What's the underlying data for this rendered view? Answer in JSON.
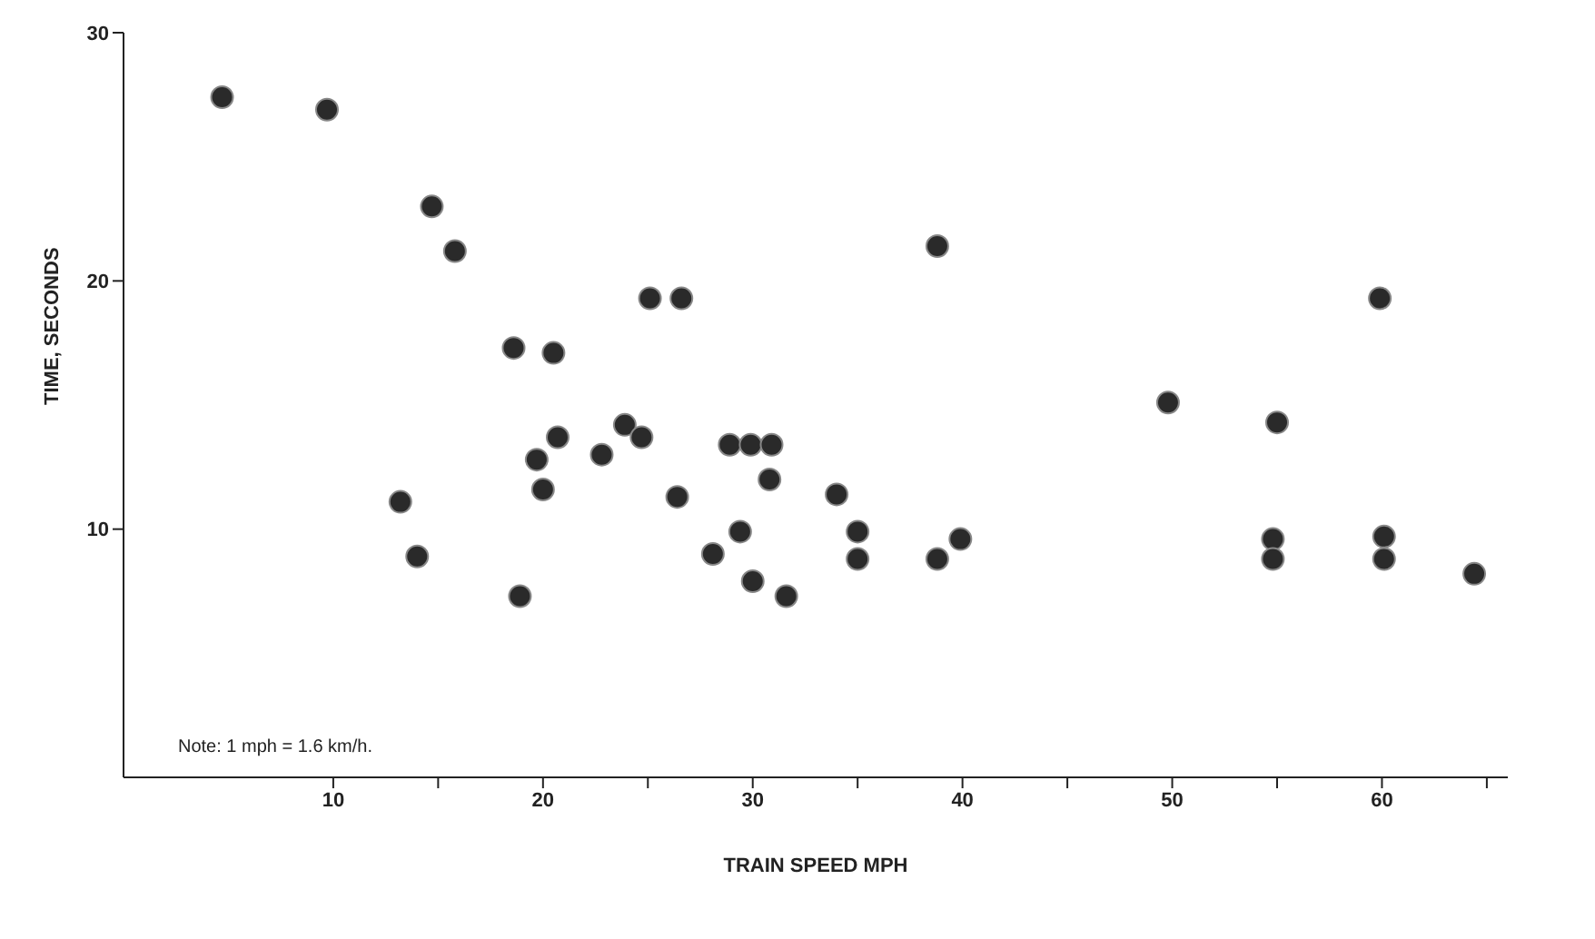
{
  "chart_data": {
    "type": "scatter",
    "xlabel": "TRAIN SPEED MPH",
    "ylabel": "TIME, SECONDS",
    "annotations": [
      "Note:  1 mph = 1.6 km/h."
    ],
    "x": [
      4.7,
      9.7,
      14.7,
      15.8,
      18.6,
      20.5,
      13.2,
      14.0,
      18.9,
      19.7,
      20.0,
      20.7,
      22.8,
      23.9,
      24.7,
      25.1,
      26.6,
      26.4,
      28.1,
      28.9,
      29.9,
      30.9,
      29.4,
      30.0,
      30.8,
      31.6,
      34.0,
      35.0,
      35.0,
      38.8,
      38.8,
      39.9,
      49.8,
      55.0,
      54.8,
      54.8,
      59.9,
      60.1,
      60.1,
      64.4
    ],
    "series": [
      {
        "color": "#2a2a2a",
        "values": [
          27.4,
          26.9,
          23.0,
          21.2,
          17.3,
          17.1,
          11.1,
          8.9,
          7.3,
          12.8,
          11.6,
          13.7,
          13.0,
          14.2,
          13.7,
          19.3,
          19.3,
          11.3,
          9.0,
          13.4,
          13.4,
          13.4,
          9.9,
          7.9,
          12.0,
          7.3,
          11.4,
          9.9,
          8.8,
          8.8,
          21.4,
          9.6,
          15.1,
          14.3,
          9.6,
          8.8,
          19.3,
          9.7,
          8.8,
          8.2
        ]
      }
    ],
    "xlim": [
      0,
      66
    ],
    "xticks": [
      10,
      {
        "value": 15,
        "label": null
      },
      20,
      {
        "value": 25,
        "label": null
      },
      30,
      {
        "value": 35,
        "label": null
      },
      40,
      {
        "value": 45,
        "label": null
      },
      50,
      {
        "value": 55,
        "label": null
      },
      60,
      {
        "value": 65,
        "label": null
      }
    ],
    "ylim": [
      0,
      30
    ],
    "yticks": [
      10,
      20,
      30
    ],
    "marker": "circle"
  }
}
